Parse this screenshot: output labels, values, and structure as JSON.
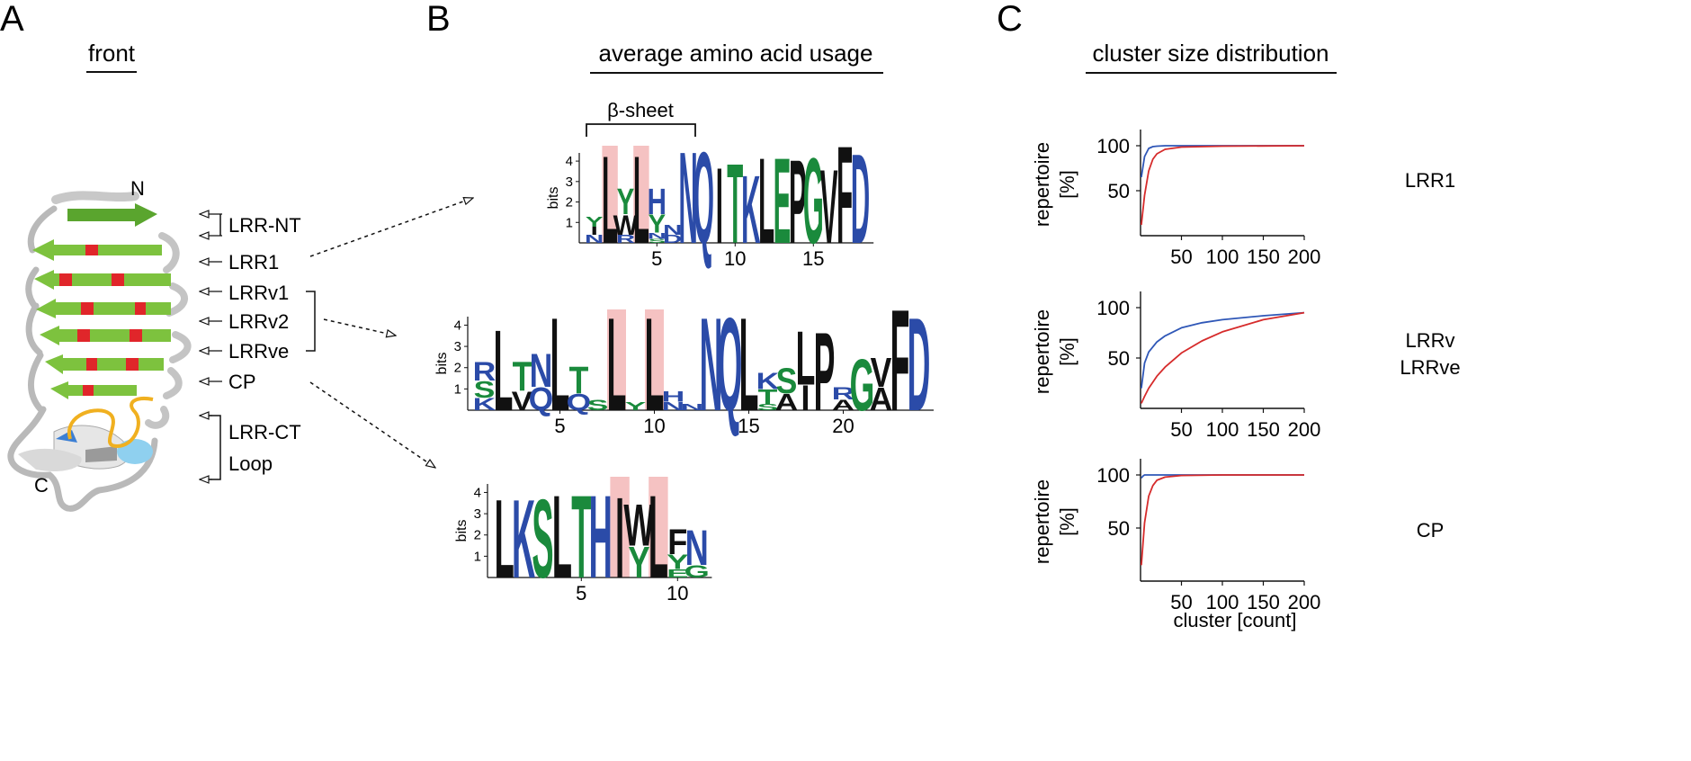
{
  "panel_a": {
    "letter": "A",
    "title": "front",
    "n_label": "N",
    "c_label": "C",
    "labels": [
      "LRR-NT",
      "LRR1",
      "LRRv1",
      "LRRv2",
      "LRRve",
      "CP",
      "LRR-CT",
      "Loop"
    ]
  },
  "panel_b": {
    "letter": "B",
    "title": "average amino acid usage",
    "bracket_label": "β-sheet",
    "y_axis_label": "bits",
    "logo1": {
      "name": "LRR1",
      "yticks": [
        "4",
        "3",
        "2",
        "1"
      ],
      "xticks": [
        "5",
        "10",
        "15"
      ],
      "stacks": [
        [
          "Y",
          "I",
          "N"
        ],
        [
          "L"
        ],
        [
          "Y",
          "W",
          "R"
        ],
        [
          "L"
        ],
        [
          "H",
          "Y",
          "N",
          "S"
        ],
        [
          "N",
          "D"
        ],
        [
          "N"
        ],
        [
          "Q"
        ],
        [
          "I"
        ],
        [
          "T"
        ],
        [
          "K"
        ],
        [
          "L"
        ],
        [
          "E"
        ],
        [
          "P"
        ],
        [
          "G"
        ],
        [
          "V"
        ],
        [
          "F"
        ],
        [
          "D"
        ]
      ]
    },
    "logo2": {
      "name": "LRRv/LRRve",
      "yticks": [
        "4",
        "3",
        "2",
        "1"
      ],
      "xticks": [
        "5",
        "10",
        "15",
        "20"
      ],
      "stacks": [
        [
          "R",
          "S",
          "K"
        ],
        [
          "L"
        ],
        [
          "T",
          "V"
        ],
        [
          "N",
          "Q"
        ],
        [
          "L"
        ],
        [
          "T",
          "Q"
        ],
        [
          "S"
        ],
        [
          "L"
        ],
        [
          "Y"
        ],
        [
          "L"
        ],
        [
          "H",
          "N"
        ],
        [
          "N"
        ],
        [
          "N"
        ],
        [
          "Q"
        ],
        [
          "L"
        ],
        [
          "K",
          "T",
          "S"
        ],
        [
          "S",
          "A"
        ],
        [
          "L",
          "I"
        ],
        [
          "P"
        ],
        [
          "R",
          "A"
        ],
        [
          "G"
        ],
        [
          "V",
          "A"
        ],
        [
          "F"
        ],
        [
          "D"
        ]
      ]
    },
    "logo3": {
      "name": "CP",
      "yticks": [
        "4",
        "3",
        "2",
        "1"
      ],
      "xticks": [
        "5",
        "10"
      ],
      "stacks": [
        [
          "L"
        ],
        [
          "K"
        ],
        [
          "S"
        ],
        [
          "L"
        ],
        [
          "T"
        ],
        [
          "H"
        ],
        [
          "I"
        ],
        [
          "W",
          "Y"
        ],
        [
          "L"
        ],
        [
          "F",
          "Y",
          "E"
        ],
        [
          "N",
          "G"
        ]
      ]
    }
  },
  "panel_c": {
    "letter": "C",
    "title": "cluster size distribution",
    "y_label_line1": "repertoire",
    "y_label_line2": "[%]",
    "x_label": "cluster [count]",
    "row_labels": [
      "LRR1",
      "LRRv",
      "LRRve",
      "CP"
    ]
  },
  "colors": {
    "hydrophobic": "#111111",
    "polar": "#1a8a3c",
    "basic_amide": "#2b4ba8",
    "highlight": "#f5c2c2",
    "strand": "#7dc23e",
    "strand_residue": "#e0262a",
    "curve_blue": "#2f57b7",
    "curve_red": "#d62b2b"
  },
  "chart_data": [
    {
      "type": "line",
      "row_label": "LRR1",
      "ylabel": "repertoire [%]",
      "xlim": [
        0,
        200
      ],
      "ylim": [
        0,
        100
      ],
      "xticks": [
        50,
        100,
        150,
        200
      ],
      "yticks": [
        50,
        100
      ],
      "series": [
        {
          "color": "blue",
          "x": [
            1,
            5,
            10,
            15,
            20,
            30,
            50,
            100,
            200
          ],
          "y": [
            65,
            88,
            97,
            99,
            99.5,
            100,
            100,
            100,
            100
          ]
        },
        {
          "color": "red",
          "x": [
            1,
            5,
            10,
            15,
            20,
            30,
            50,
            100,
            200
          ],
          "y": [
            12,
            45,
            72,
            85,
            91,
            96,
            98.5,
            99.5,
            100
          ]
        }
      ]
    },
    {
      "type": "line",
      "row_label": "LRRv / LRRve",
      "ylabel": "repertoire [%]",
      "xlim": [
        0,
        200
      ],
      "ylim": [
        0,
        100
      ],
      "xticks": [
        50,
        100,
        150,
        200
      ],
      "yticks": [
        50,
        100
      ],
      "series": [
        {
          "color": "blue",
          "x": [
            1,
            5,
            10,
            20,
            30,
            50,
            75,
            100,
            150,
            200
          ],
          "y": [
            20,
            45,
            56,
            66,
            72,
            80,
            85,
            88,
            92,
            95
          ]
        },
        {
          "color": "red",
          "x": [
            1,
            5,
            10,
            20,
            30,
            50,
            75,
            100,
            150,
            200
          ],
          "y": [
            5,
            12,
            20,
            32,
            41,
            55,
            67,
            76,
            88,
            95
          ]
        }
      ]
    },
    {
      "type": "line",
      "row_label": "CP",
      "ylabel": "repertoire [%]",
      "xlabel": "cluster [count]",
      "xlim": [
        0,
        200
      ],
      "ylim": [
        0,
        100
      ],
      "xticks": [
        50,
        100,
        150,
        200
      ],
      "yticks": [
        50,
        100
      ],
      "series": [
        {
          "color": "blue",
          "x": [
            1,
            3,
            5,
            10,
            50,
            200
          ],
          "y": [
            97,
            99,
            100,
            100,
            100,
            100
          ]
        },
        {
          "color": "red",
          "x": [
            1,
            5,
            10,
            15,
            20,
            30,
            50,
            100,
            200
          ],
          "y": [
            15,
            55,
            80,
            90,
            95,
            98,
            99.5,
            100,
            100
          ]
        }
      ]
    }
  ]
}
